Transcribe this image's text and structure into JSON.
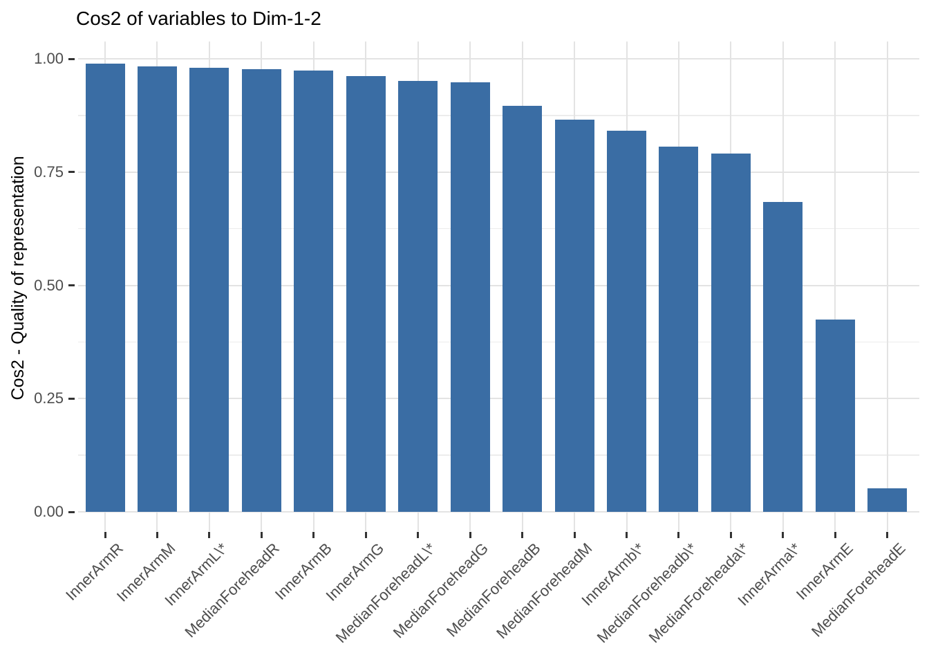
{
  "chart_data": {
    "type": "bar",
    "title": "Cos2 of variables to Dim-1-2",
    "xlabel": "",
    "ylabel": "Cos2 - Quality of representation",
    "categories": [
      "InnerArmR",
      "InnerArmM",
      "InnerArmL\\*",
      "MedianForeheadR",
      "InnerArmB",
      "InnerArmG",
      "MedianForeheadL\\*",
      "MedianForeheadG",
      "MedianForeheadB",
      "MedianForeheadM",
      "InnerArmb\\*",
      "MedianForeheadb\\*",
      "MedianForeheada\\*",
      "InnerArma\\*",
      "InnerArmE",
      "MedianForeheadE"
    ],
    "values": [
      0.99,
      0.983,
      0.98,
      0.977,
      0.974,
      0.962,
      0.951,
      0.948,
      0.896,
      0.866,
      0.841,
      0.806,
      0.791,
      0.684,
      0.424,
      0.052
    ],
    "ylim": [
      0,
      1.0
    ],
    "yticks": [
      0,
      0.25,
      0.5,
      0.75,
      1.0
    ],
    "ytick_labels": [
      "0.00",
      "0.25",
      "0.50",
      "0.75",
      "1.00"
    ],
    "minor_gridlines": [
      0.125,
      0.375,
      0.625,
      0.875
    ],
    "x_label_angle": 45,
    "grid": "horizontal major+minor, vertical major at category centers",
    "legend_position": "none",
    "colors": {
      "bar": "#3A6DA4",
      "grid_major": "#E3E3E3",
      "grid_minor": "#ECECEC",
      "axis_tick": "#333333",
      "axis_text": "#4D4D4D",
      "title_text": "#000000",
      "background": "#FFFFFF"
    }
  }
}
